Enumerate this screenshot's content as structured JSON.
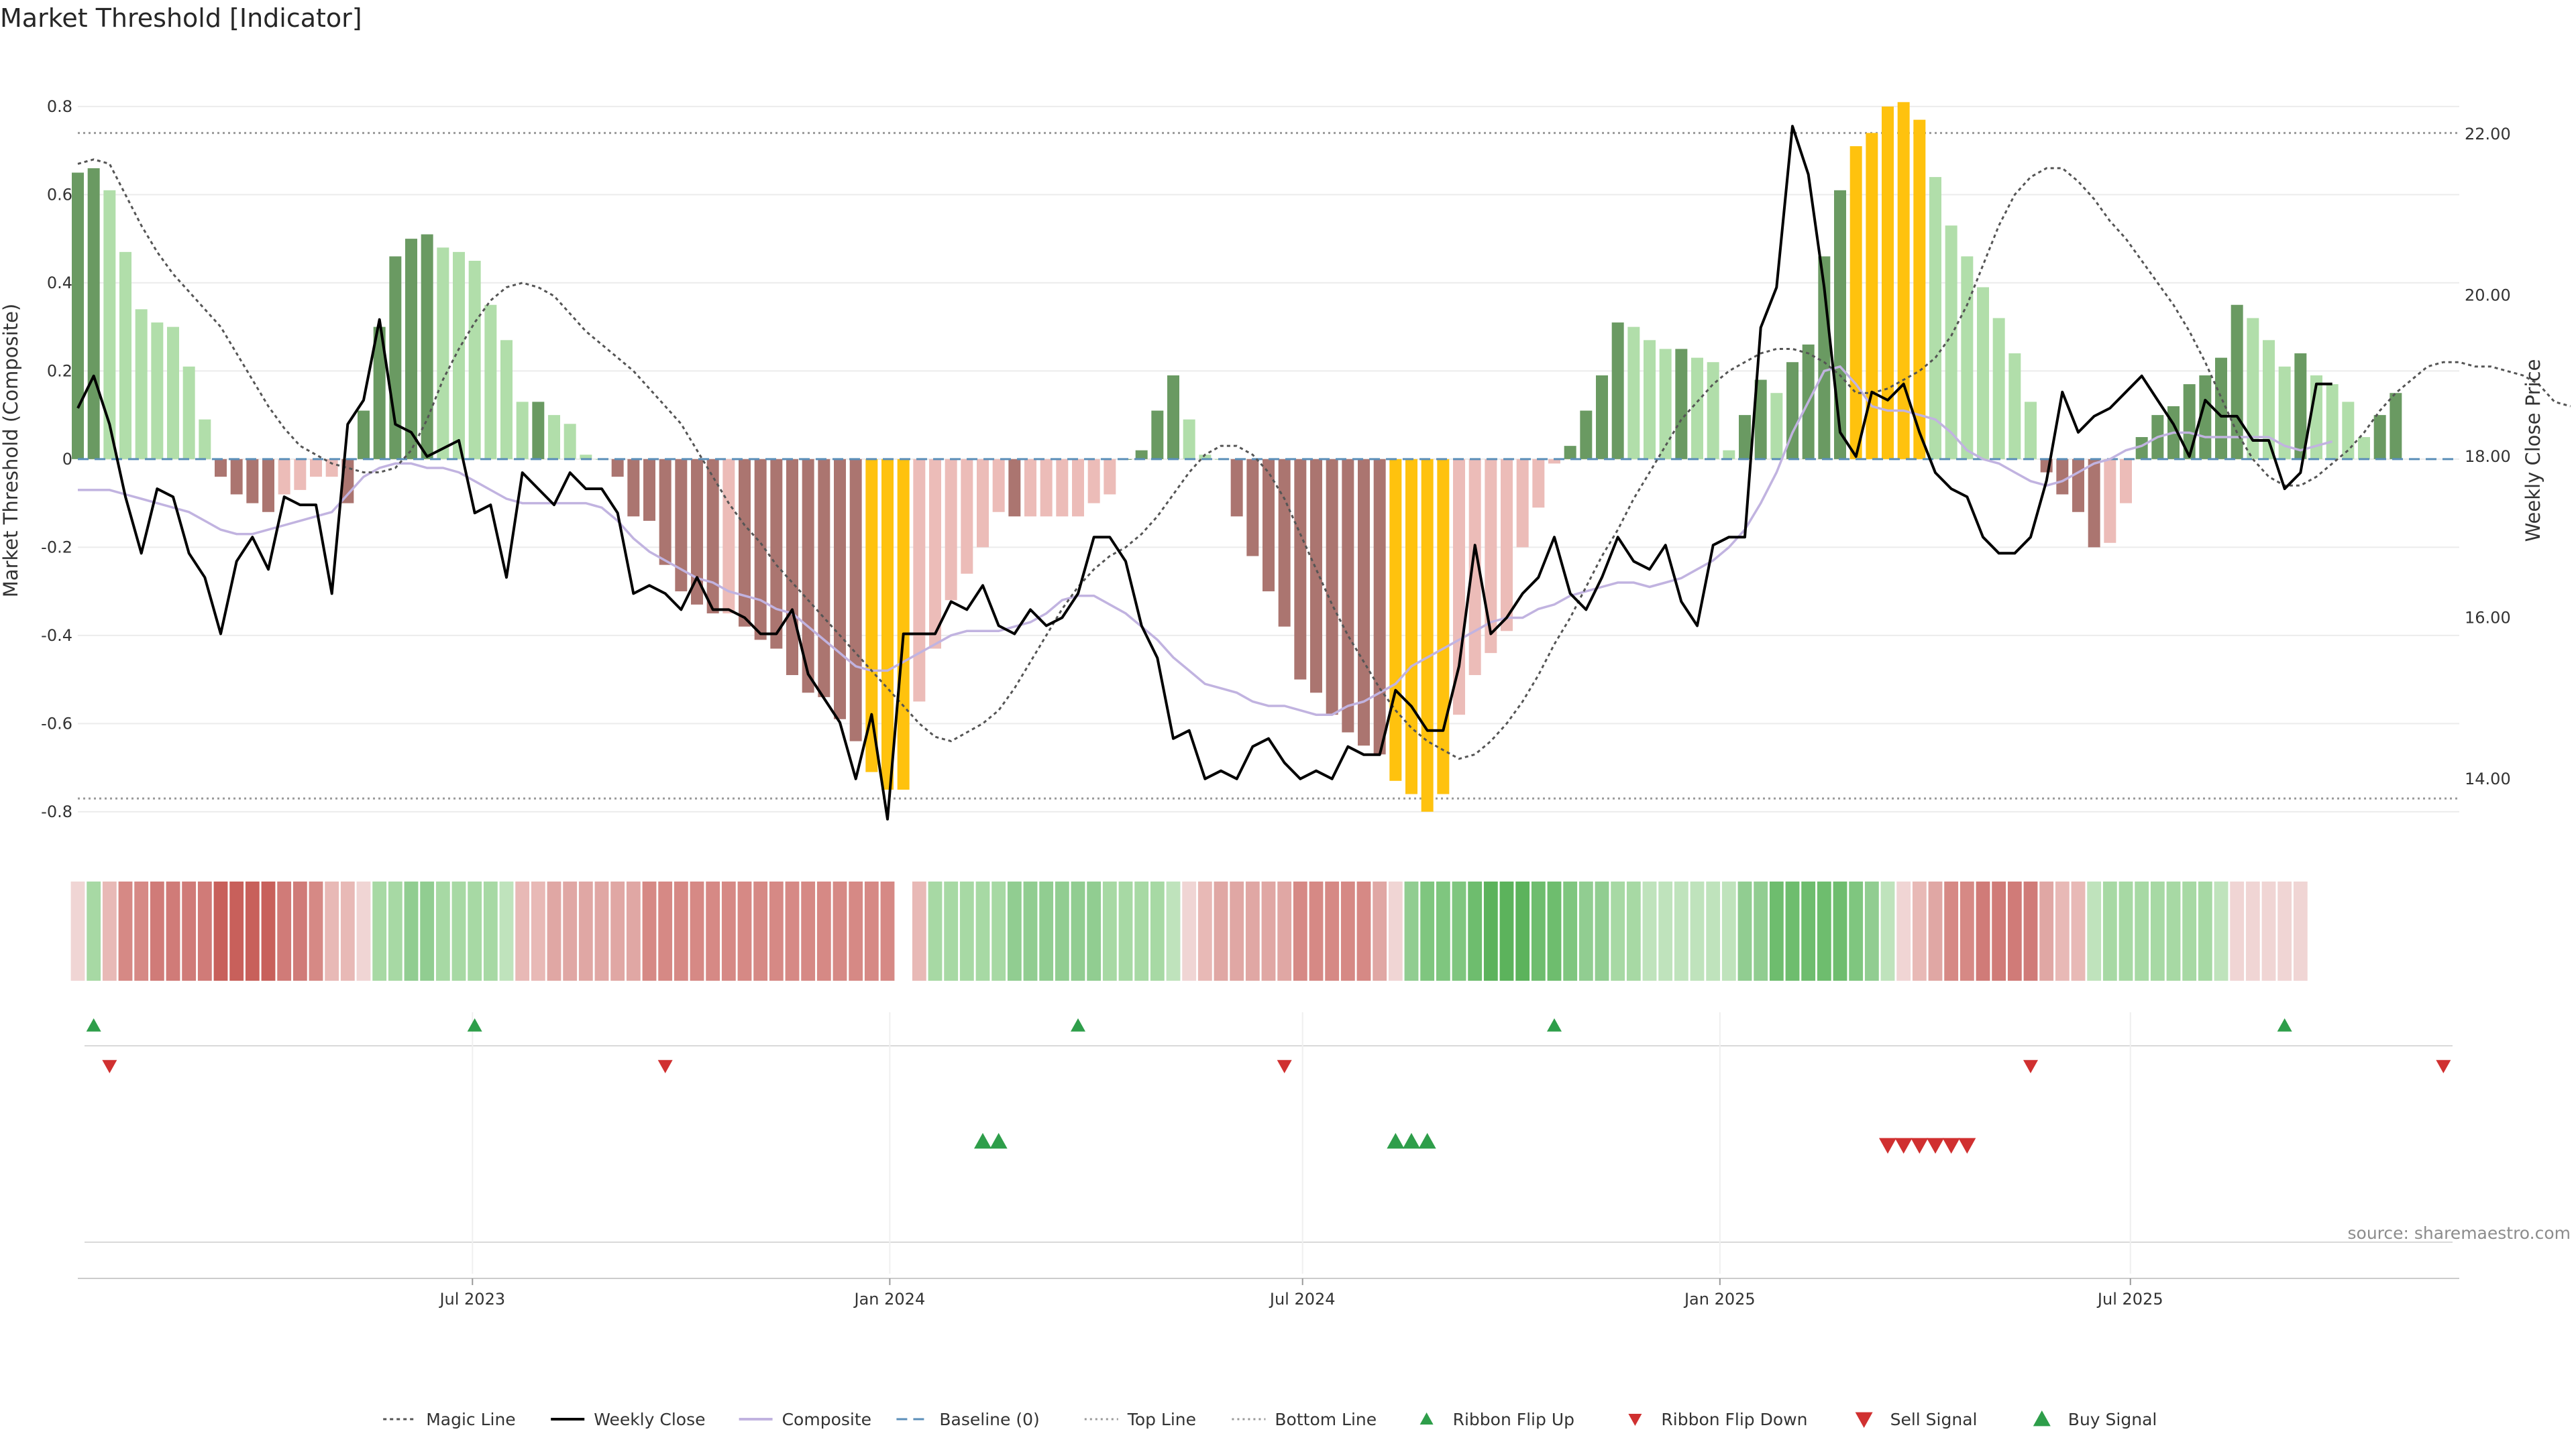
{
  "chart_data": {
    "type": "bar",
    "title": "Market Threshold [Indicator]",
    "ylabel_left": "Market Threshold (Composite)",
    "ylabel_right": "Weekly Close Price",
    "source": "source: sharemaestro.com",
    "x_start": "2023-01-08",
    "x_end": "2025-11-23",
    "ylim_left": [
      -0.89,
      0.92
    ],
    "ylim_right": [
      13.1,
      23.0
    ],
    "yticks_left": [
      "0.8",
      "0.6",
      "0.4",
      "0.2",
      "0",
      "-0.2",
      "-0.4",
      "-0.6",
      "-0.8"
    ],
    "yticks_right": [
      "22.00",
      "20.00",
      "18.00",
      "16.00",
      "14.00"
    ],
    "xticks": [
      {
        "date": "2023-07-01",
        "label": "Jul 2023"
      },
      {
        "date": "2024-01-01",
        "label": "Jan 2024"
      },
      {
        "date": "2024-07-01",
        "label": "Jul 2024"
      },
      {
        "date": "2025-01-01",
        "label": "Jan 2025"
      },
      {
        "date": "2025-07-01",
        "label": "Jul 2025"
      }
    ],
    "top_line": 0.74,
    "bottom_line": -0.77,
    "baseline": 0,
    "colors": {
      "strong_pos": "#6a9a62",
      "weak_pos": "#b1deaa",
      "strong_neg": "#ab7570",
      "weak_neg": "#ecbcb8",
      "extreme": "#ffc20e",
      "weekly_close": "#000000",
      "composite": "#c1b3e0",
      "magic_line": "#555555",
      "baseline": "#5b8fb9",
      "thresholds": "#999999",
      "signal_up": "#2e9e4a",
      "signal_down": "#d03030"
    },
    "magic_line": [
      0.67,
      0.68,
      0.67,
      0.6,
      0.53,
      0.47,
      0.42,
      0.38,
      0.34,
      0.3,
      0.24,
      0.18,
      0.12,
      0.07,
      0.03,
      0.01,
      -0.01,
      -0.02,
      -0.03,
      -0.03,
      -0.02,
      0.02,
      0.09,
      0.18,
      0.25,
      0.31,
      0.36,
      0.39,
      0.4,
      0.39,
      0.37,
      0.33,
      0.29,
      0.26,
      0.23,
      0.2,
      0.16,
      0.12,
      0.08,
      0.02,
      -0.04,
      -0.1,
      -0.15,
      -0.19,
      -0.24,
      -0.28,
      -0.32,
      -0.36,
      -0.4,
      -0.44,
      -0.48,
      -0.52,
      -0.56,
      -0.6,
      -0.63,
      -0.64,
      -0.62,
      -0.6,
      -0.57,
      -0.52,
      -0.46,
      -0.4,
      -0.34,
      -0.29,
      -0.25,
      -0.22,
      -0.2,
      -0.17,
      -0.13,
      -0.08,
      -0.03,
      0.01,
      0.03,
      0.03,
      0.01,
      -0.03,
      -0.09,
      -0.17,
      -0.25,
      -0.33,
      -0.4,
      -0.46,
      -0.52,
      -0.57,
      -0.61,
      -0.64,
      -0.66,
      -0.68,
      -0.67,
      -0.64,
      -0.6,
      -0.55,
      -0.49,
      -0.42,
      -0.36,
      -0.29,
      -0.22,
      -0.16,
      -0.09,
      -0.03,
      0.03,
      0.09,
      0.13,
      0.17,
      0.2,
      0.22,
      0.24,
      0.25,
      0.25,
      0.24,
      0.22,
      0.19,
      0.15,
      0.15,
      0.16,
      0.18,
      0.2,
      0.23,
      0.28,
      0.35,
      0.44,
      0.53,
      0.6,
      0.64,
      0.66,
      0.66,
      0.63,
      0.59,
      0.54,
      0.5,
      0.45,
      0.4,
      0.35,
      0.29,
      0.22,
      0.14,
      0.06,
      0.0,
      -0.04,
      -0.06,
      -0.06,
      -0.04,
      -0.01,
      0.02,
      0.06,
      0.11,
      0.15,
      0.18,
      0.21,
      0.22,
      0.22,
      0.21,
      0.21,
      0.2,
      0.19,
      0.17,
      0.13,
      0.12
    ],
    "ribbon_colors": [
      "#f0d5d4",
      "#a7d9a4",
      "#e8b9b6",
      "#d68985",
      "#d68985",
      "#d07b78",
      "#d07b78",
      "#d07b78",
      "#d07b78",
      "#c8605b",
      "#c8605b",
      "#c8605b",
      "#c8605b",
      "#d07b78",
      "#d07b78",
      "#d68985",
      "#e8b9b6",
      "#e8b9b6",
      "#f0d5d4",
      "#a7d9a4",
      "#a7d9a4",
      "#91cd91",
      "#91cd91",
      "#a7d9a4",
      "#a7d9a4",
      "#a7d9a4",
      "#a7d9a4",
      "#bfe3bc",
      "#e8b9b6",
      "#e8b9b6",
      "#e0a7a4",
      "#e0a7a4",
      "#e0a7a4",
      "#e0a7a4",
      "#e0a7a4",
      "#e0a7a4",
      "#d68985",
      "#d68985",
      "#d68985",
      "#d68985",
      "#d68985",
      "#d68985",
      "#d68985",
      "#d68985",
      "#d68985",
      "#d68985",
      "#d68985",
      "#d68985",
      "#d68985",
      "#d68985",
      "#d68985",
      "#d68985",
      null,
      "#e8b9b6",
      "#a7d9a4",
      "#a7d9a4",
      "#a7d9a4",
      "#a7d9a4",
      "#a7d9a4",
      "#91cd91",
      "#91cd91",
      "#91cd91",
      "#91cd91",
      "#91cd91",
      "#91cd91",
      "#a7d9a4",
      "#a7d9a4",
      "#a7d9a4",
      "#a7d9a4",
      "#bfe3bc",
      "#f0d5d4",
      "#e8b9b6",
      "#e0a7a4",
      "#e0a7a4",
      "#e0a7a4",
      "#e0a7a4",
      "#e0a7a4",
      "#d68985",
      "#d68985",
      "#d68985",
      "#d68985",
      "#d68985",
      "#e0a7a4",
      "#f0d5d4",
      "#91cd91",
      "#7fc67f",
      "#7fc67f",
      "#7fc67f",
      "#6ebd6e",
      "#5cb35c",
      "#5cb35c",
      "#5cb35c",
      "#6ebd6e",
      "#6ebd6e",
      "#7fc67f",
      "#91cd91",
      "#91cd91",
      "#a7d9a4",
      "#a7d9a4",
      "#bfe3bc",
      "#bfe3bc",
      "#bfe3bc",
      "#bfe3bc",
      "#bfe3bc",
      "#bfe3bc",
      "#91cd91",
      "#91cd91",
      "#6ebd6e",
      "#6ebd6e",
      "#6ebd6e",
      "#6ebd6e",
      "#6ebd6e",
      "#7fc67f",
      "#91cd91",
      "#bfe3bc",
      "#f0d5d4",
      "#e8b9b6",
      "#e0a7a4",
      "#d68985",
      "#d68985",
      "#d07b78",
      "#d07b78",
      "#d07b78",
      "#d07b78",
      "#e0a7a4",
      "#e8b9b6",
      "#e8b9b6",
      "#bfe3bc",
      "#a7d9a4",
      "#a7d9a4",
      "#a7d9a4",
      "#a7d9a4",
      "#a7d9a4",
      "#a7d9a4",
      "#a7d9a4",
      "#bfe3bc",
      "#f0d5d4",
      "#f0d5d4",
      "#f0d5d4",
      "#f0d5d4",
      "#f0d5d4"
    ],
    "signals": {
      "ribbon_flip_up": [
        "2023-01-15",
        "2023-07-02",
        "2024-03-24",
        "2024-10-20",
        "2025-09-07"
      ],
      "ribbon_flip_down": [
        "2023-01-22",
        "2023-09-24",
        "2024-06-23",
        "2025-05-18",
        "2025-11-16"
      ],
      "buy_signal": [
        "2024-02-11",
        "2024-02-18",
        "2024-08-11",
        "2024-08-18",
        "2024-08-25"
      ],
      "sell_signal": [
        "2025-03-16",
        "2025-03-23",
        "2025-03-30",
        "2025-04-06",
        "2025-04-13",
        "2025-04-20"
      ]
    },
    "legend": [
      {
        "key": "magic",
        "label": "Magic Line"
      },
      {
        "key": "close",
        "label": "Weekly Close"
      },
      {
        "key": "composite",
        "label": "Composite"
      },
      {
        "key": "baseline",
        "label": "Baseline (0)"
      },
      {
        "key": "top",
        "label": "Top Line"
      },
      {
        "key": "bottom",
        "label": "Bottom Line"
      },
      {
        "key": "flip_up",
        "label": "Ribbon Flip Up"
      },
      {
        "key": "flip_down",
        "label": "Ribbon Flip Down"
      },
      {
        "key": "sell",
        "label": "Sell Signal"
      },
      {
        "key": "buy",
        "label": "Buy Signal"
      }
    ],
    "series": [
      {
        "name": "Weekly Close",
        "values": [
          18.6,
          19.0,
          18.4,
          17.5,
          16.8,
          17.6,
          17.5,
          16.8,
          16.5,
          15.8,
          16.7,
          17.0,
          16.6,
          17.5,
          17.4,
          17.4,
          16.3,
          18.4,
          18.7,
          19.7,
          18.4,
          18.3,
          18.0,
          18.1,
          18.2,
          17.3,
          17.4,
          16.5,
          17.8,
          17.6,
          17.4,
          17.8,
          17.6,
          17.6,
          17.3,
          16.3,
          16.4,
          16.3,
          16.1,
          16.5,
          16.1,
          16.1,
          16.0,
          15.8,
          15.8,
          16.1,
          15.3,
          15.0,
          14.7,
          14.0,
          14.8,
          13.5,
          15.8,
          15.8,
          15.8,
          16.2,
          16.1,
          16.4,
          15.9,
          15.8,
          16.1,
          15.9,
          16.0,
          16.3,
          17.0,
          17.0,
          16.7,
          15.9,
          15.5,
          14.5,
          14.6,
          14.0,
          14.1,
          14.0,
          14.4,
          14.5,
          14.2,
          14.0,
          14.1,
          14.0,
          14.4,
          14.3,
          14.3,
          15.1,
          14.9,
          14.6,
          14.6,
          15.4,
          16.9,
          15.8,
          16.0,
          16.3,
          16.5,
          17.0,
          16.3,
          16.1,
          16.5,
          17.0,
          16.7,
          16.6,
          16.9,
          16.2,
          15.9,
          16.9,
          17.0,
          17.0,
          19.6,
          20.1,
          22.1,
          21.5,
          20.1,
          18.3,
          18.0,
          18.8,
          18.7,
          18.9,
          18.3,
          17.8,
          17.6,
          17.5,
          17.0,
          16.8,
          16.8,
          17.0,
          17.7,
          18.8,
          18.3,
          18.5,
          18.6,
          18.8,
          19.0,
          18.7,
          18.4,
          18.0,
          18.7,
          18.5,
          18.5,
          18.2,
          18.2,
          17.6,
          17.8,
          18.9,
          18.9
        ]
      },
      {
        "name": "Composite",
        "values": [
          -0.07,
          -0.07,
          -0.07,
          -0.08,
          -0.09,
          -0.1,
          -0.11,
          -0.12,
          -0.14,
          -0.16,
          -0.17,
          -0.17,
          -0.16,
          -0.15,
          -0.14,
          -0.13,
          -0.12,
          -0.08,
          -0.04,
          -0.02,
          -0.01,
          -0.01,
          -0.02,
          -0.02,
          -0.03,
          -0.05,
          -0.07,
          -0.09,
          -0.1,
          -0.1,
          -0.1,
          -0.1,
          -0.1,
          -0.11,
          -0.14,
          -0.18,
          -0.21,
          -0.23,
          -0.25,
          -0.27,
          -0.28,
          -0.3,
          -0.31,
          -0.32,
          -0.34,
          -0.35,
          -0.38,
          -0.41,
          -0.44,
          -0.47,
          -0.48,
          -0.48,
          -0.46,
          -0.44,
          -0.42,
          -0.4,
          -0.39,
          -0.39,
          -0.39,
          -0.38,
          -0.37,
          -0.35,
          -0.32,
          -0.31,
          -0.31,
          -0.33,
          -0.35,
          -0.38,
          -0.41,
          -0.45,
          -0.48,
          -0.51,
          -0.52,
          -0.53,
          -0.55,
          -0.56,
          -0.56,
          -0.57,
          -0.58,
          -0.58,
          -0.56,
          -0.55,
          -0.53,
          -0.51,
          -0.47,
          -0.45,
          -0.43,
          -0.41,
          -0.39,
          -0.37,
          -0.36,
          -0.36,
          -0.34,
          -0.33,
          -0.31,
          -0.3,
          -0.29,
          -0.28,
          -0.28,
          -0.29,
          -0.28,
          -0.27,
          -0.25,
          -0.23,
          -0.2,
          -0.16,
          -0.1,
          -0.03,
          0.06,
          0.13,
          0.2,
          0.21,
          0.17,
          0.12,
          0.11,
          0.11,
          0.1,
          0.09,
          0.06,
          0.02,
          0.0,
          -0.01,
          -0.03,
          -0.05,
          -0.06,
          -0.05,
          -0.03,
          -0.01,
          0.0,
          0.02,
          0.03,
          0.05,
          0.06,
          0.06,
          0.05,
          0.05,
          0.05,
          0.05,
          0.05,
          0.03,
          0.02,
          0.03,
          0.04
        ]
      },
      {
        "name": "Market Threshold",
        "values": [
          0.65,
          0.66,
          0.61,
          0.47,
          0.34,
          0.31,
          0.3,
          0.21,
          0.09,
          -0.04,
          -0.08,
          -0.1,
          -0.12,
          -0.08,
          -0.07,
          -0.04,
          -0.04,
          -0.1,
          0.11,
          0.3,
          0.46,
          0.5,
          0.51,
          0.48,
          0.47,
          0.45,
          0.35,
          0.27,
          0.13,
          0.13,
          0.1,
          0.08,
          0.01,
          0.0,
          -0.04,
          -0.13,
          -0.14,
          -0.24,
          -0.3,
          -0.33,
          -0.35,
          -0.35,
          -0.38,
          -0.41,
          -0.43,
          -0.49,
          -0.53,
          -0.54,
          -0.59,
          -0.64,
          -0.71,
          -0.75,
          -0.75,
          -0.55,
          -0.43,
          -0.32,
          -0.26,
          -0.2,
          -0.12,
          -0.13,
          -0.13,
          -0.13,
          -0.13,
          -0.13,
          -0.1,
          -0.08,
          0.0,
          0.02,
          0.11,
          0.19,
          0.09,
          0.01,
          0.0,
          -0.13,
          -0.22,
          -0.3,
          -0.38,
          -0.5,
          -0.53,
          -0.58,
          -0.62,
          -0.65,
          -0.67,
          -0.73,
          -0.76,
          -0.8,
          -0.76,
          -0.58,
          -0.49,
          -0.44,
          -0.39,
          -0.2,
          -0.11,
          -0.01,
          0.03,
          0.11,
          0.19,
          0.31,
          0.3,
          0.27,
          0.25,
          0.25,
          0.23,
          0.22,
          0.02,
          0.1,
          0.18,
          0.15,
          0.22,
          0.26,
          0.46,
          0.61,
          0.71,
          0.74,
          0.8,
          0.81,
          0.77,
          0.64,
          0.53,
          0.46,
          0.39,
          0.32,
          0.24,
          0.13,
          -0.03,
          -0.08,
          -0.12,
          -0.2,
          -0.19,
          -0.1,
          0.05,
          0.1,
          0.12,
          0.17,
          0.19,
          0.23,
          0.35,
          0.32,
          0.27,
          0.21,
          0.24,
          0.19,
          0.17,
          0.13,
          0.05,
          0.1,
          0.15
        ]
      }
    ]
  }
}
